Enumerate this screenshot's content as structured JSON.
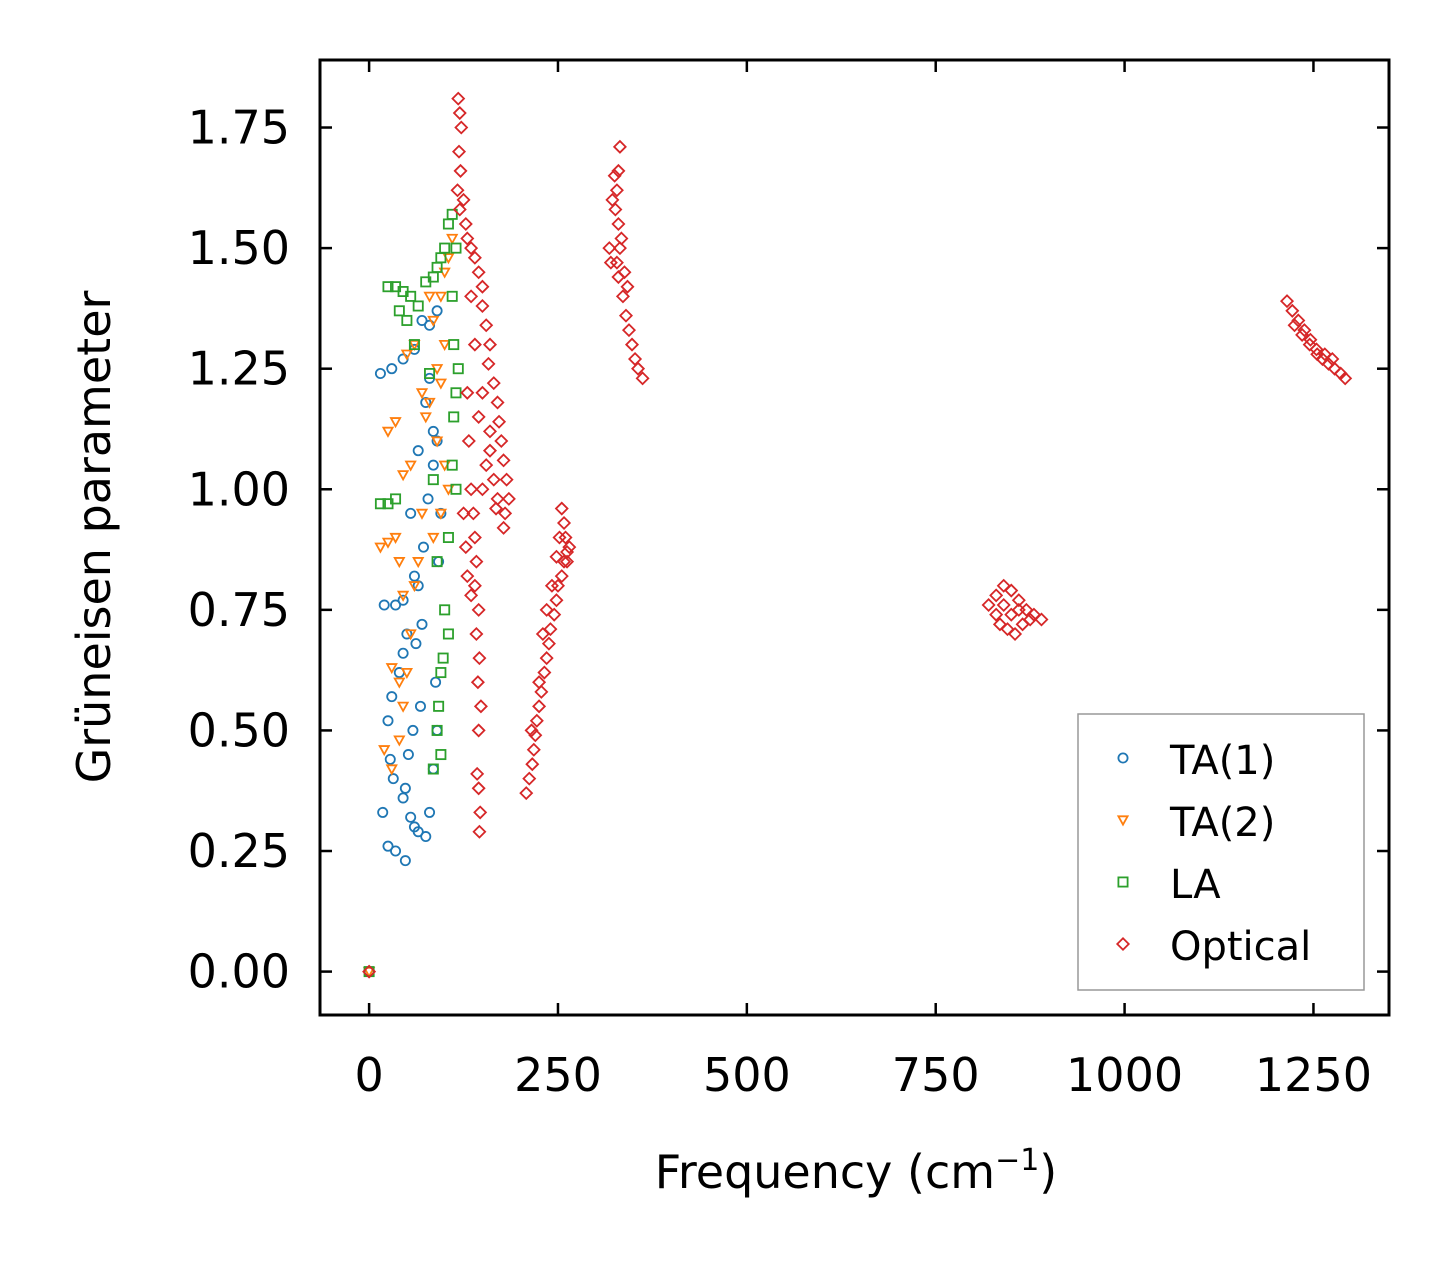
{
  "chart_data": {
    "type": "scatter",
    "xlabel": "Frequency (cm",
    "xlabel_sup": "−1",
    "xlabel_end": ")",
    "ylabel": "Grüneisen parameter",
    "xlim": [
      -65,
      1350
    ],
    "ylim": [
      -0.09,
      1.89
    ],
    "xticks": [
      0,
      250,
      500,
      750,
      1000,
      1250
    ],
    "xtick_labels": [
      "0",
      "250",
      "500",
      "750",
      "1000",
      "1250"
    ],
    "yticks": [
      0.0,
      0.25,
      0.5,
      0.75,
      1.0,
      1.25,
      1.5,
      1.75
    ],
    "ytick_labels": [
      "0.00",
      "0.25",
      "0.50",
      "0.75",
      "1.00",
      "1.25",
      "1.50",
      "1.75"
    ],
    "legend_position": "lower-right",
    "series": [
      {
        "name": "TA(1)",
        "marker": "circle",
        "color": "#1f77b4",
        "points": [
          [
            0,
            0
          ],
          [
            15,
            1.24
          ],
          [
            30,
            1.25
          ],
          [
            45,
            1.27
          ],
          [
            60,
            1.29
          ],
          [
            20,
            0.76
          ],
          [
            35,
            0.76
          ],
          [
            45,
            0.77
          ],
          [
            50,
            0.7
          ],
          [
            40,
            0.62
          ],
          [
            45,
            0.66
          ],
          [
            30,
            0.57
          ],
          [
            25,
            0.52
          ],
          [
            28,
            0.44
          ],
          [
            32,
            0.4
          ],
          [
            18,
            0.33
          ],
          [
            25,
            0.26
          ],
          [
            35,
            0.25
          ],
          [
            48,
            0.23
          ],
          [
            70,
            1.35
          ],
          [
            80,
            1.34
          ],
          [
            90,
            1.37
          ],
          [
            75,
            1.18
          ],
          [
            85,
            1.12
          ],
          [
            65,
            1.08
          ],
          [
            55,
            0.95
          ],
          [
            60,
            0.82
          ],
          [
            65,
            0.8
          ],
          [
            70,
            0.72
          ],
          [
            62,
            0.68
          ],
          [
            68,
            0.55
          ],
          [
            58,
            0.5
          ],
          [
            52,
            0.45
          ],
          [
            48,
            0.38
          ],
          [
            45,
            0.36
          ],
          [
            55,
            0.32
          ],
          [
            60,
            0.3
          ],
          [
            65,
            0.29
          ],
          [
            75,
            0.28
          ],
          [
            80,
            0.33
          ],
          [
            85,
            0.42
          ],
          [
            90,
            0.5
          ],
          [
            88,
            0.6
          ],
          [
            92,
            0.85
          ],
          [
            95,
            0.95
          ],
          [
            85,
            1.05
          ],
          [
            90,
            1.1
          ],
          [
            80,
            1.23
          ],
          [
            78,
            0.98
          ],
          [
            72,
            0.88
          ]
        ]
      },
      {
        "name": "TA(2)",
        "marker": "triangle-down",
        "color": "#ff7f0e",
        "points": [
          [
            0,
            0
          ],
          [
            15,
            0.88
          ],
          [
            25,
            0.89
          ],
          [
            35,
            0.9
          ],
          [
            40,
            0.85
          ],
          [
            45,
            0.78
          ],
          [
            30,
            0.63
          ],
          [
            40,
            0.6
          ],
          [
            20,
            0.46
          ],
          [
            30,
            0.42
          ],
          [
            25,
            1.12
          ],
          [
            35,
            1.14
          ],
          [
            45,
            1.03
          ],
          [
            55,
            1.05
          ],
          [
            50,
            1.28
          ],
          [
            60,
            1.3
          ],
          [
            70,
            1.2
          ],
          [
            80,
            1.18
          ],
          [
            90,
            1.1
          ],
          [
            95,
            1.4
          ],
          [
            100,
            1.45
          ],
          [
            105,
            1.48
          ],
          [
            110,
            1.52
          ],
          [
            100,
            1.3
          ],
          [
            95,
            1.22
          ],
          [
            90,
            1.25
          ],
          [
            85,
            1.35
          ],
          [
            80,
            1.4
          ],
          [
            75,
            1.15
          ],
          [
            70,
            0.95
          ],
          [
            65,
            0.85
          ],
          [
            60,
            0.8
          ],
          [
            55,
            0.7
          ],
          [
            50,
            0.62
          ],
          [
            45,
            0.55
          ],
          [
            40,
            0.48
          ],
          [
            85,
            0.9
          ],
          [
            95,
            0.95
          ],
          [
            100,
            1.05
          ],
          [
            105,
            1.0
          ]
        ]
      },
      {
        "name": "LA",
        "marker": "square",
        "color": "#2ca02c",
        "points": [
          [
            0,
            0
          ],
          [
            25,
            1.42
          ],
          [
            35,
            1.42
          ],
          [
            45,
            1.41
          ],
          [
            55,
            1.4
          ],
          [
            40,
            1.37
          ],
          [
            50,
            1.35
          ],
          [
            60,
            1.3
          ],
          [
            65,
            1.38
          ],
          [
            75,
            1.43
          ],
          [
            85,
            1.44
          ],
          [
            90,
            1.46
          ],
          [
            95,
            1.48
          ],
          [
            100,
            1.5
          ],
          [
            105,
            1.55
          ],
          [
            110,
            1.57
          ],
          [
            115,
            1.5
          ],
          [
            110,
            1.4
          ],
          [
            112,
            1.3
          ],
          [
            115,
            1.2
          ],
          [
            110,
            1.05
          ],
          [
            105,
            0.9
          ],
          [
            100,
            0.75
          ],
          [
            98,
            0.65
          ],
          [
            95,
            0.62
          ],
          [
            92,
            0.55
          ],
          [
            90,
            0.5
          ],
          [
            95,
            0.45
          ],
          [
            85,
            0.42
          ],
          [
            15,
            0.97
          ],
          [
            25,
            0.97
          ],
          [
            35,
            0.98
          ],
          [
            80,
            1.24
          ],
          [
            85,
            1.02
          ],
          [
            90,
            0.85
          ],
          [
            105,
            0.7
          ],
          [
            115,
            1.0
          ],
          [
            112,
            1.15
          ],
          [
            118,
            1.25
          ]
        ]
      },
      {
        "name": "Optical",
        "marker": "diamond",
        "color": "#d62728",
        "points": [
          [
            0,
            0
          ],
          [
            118,
            1.81
          ],
          [
            120,
            1.78
          ],
          [
            122,
            1.75
          ],
          [
            119,
            1.7
          ],
          [
            121,
            1.66
          ],
          [
            117,
            1.62
          ],
          [
            125,
            1.6
          ],
          [
            120,
            1.58
          ],
          [
            128,
            1.55
          ],
          [
            130,
            1.52
          ],
          [
            135,
            1.5
          ],
          [
            140,
            1.48
          ],
          [
            145,
            1.45
          ],
          [
            150,
            1.42
          ],
          [
            150,
            1.38
          ],
          [
            155,
            1.34
          ],
          [
            160,
            1.3
          ],
          [
            158,
            1.26
          ],
          [
            165,
            1.22
          ],
          [
            170,
            1.18
          ],
          [
            172,
            1.14
          ],
          [
            175,
            1.1
          ],
          [
            178,
            1.06
          ],
          [
            182,
            1.02
          ],
          [
            185,
            0.98
          ],
          [
            180,
            0.95
          ],
          [
            178,
            0.92
          ],
          [
            130,
            1.2
          ],
          [
            132,
            1.1
          ],
          [
            135,
            1.0
          ],
          [
            138,
            0.95
          ],
          [
            140,
            0.9
          ],
          [
            142,
            0.85
          ],
          [
            140,
            0.8
          ],
          [
            145,
            0.75
          ],
          [
            142,
            0.7
          ],
          [
            146,
            0.65
          ],
          [
            144,
            0.6
          ],
          [
            148,
            0.55
          ],
          [
            145,
            0.5
          ],
          [
            143,
            0.41
          ],
          [
            145,
            0.38
          ],
          [
            147,
            0.33
          ],
          [
            146,
            0.29
          ],
          [
            125,
            0.95
          ],
          [
            128,
            0.88
          ],
          [
            130,
            0.82
          ],
          [
            135,
            0.78
          ],
          [
            150,
            1.0
          ],
          [
            155,
            1.05
          ],
          [
            160,
            1.12
          ],
          [
            165,
            1.02
          ],
          [
            170,
            0.98
          ],
          [
            150,
            1.2
          ],
          [
            140,
            1.3
          ],
          [
            135,
            1.4
          ],
          [
            145,
            1.15
          ],
          [
            160,
            1.08
          ],
          [
            168,
            0.96
          ],
          [
            332,
            1.71
          ],
          [
            330,
            1.66
          ],
          [
            328,
            1.62
          ],
          [
            326,
            1.58
          ],
          [
            330,
            1.55
          ],
          [
            334,
            1.52
          ],
          [
            332,
            1.5
          ],
          [
            328,
            1.47
          ],
          [
            330,
            1.44
          ],
          [
            336,
            1.4
          ],
          [
            340,
            1.36
          ],
          [
            344,
            1.33
          ],
          [
            348,
            1.3
          ],
          [
            352,
            1.27
          ],
          [
            356,
            1.25
          ],
          [
            362,
            1.23
          ],
          [
            320,
            1.47
          ],
          [
            318,
            1.5
          ],
          [
            322,
            1.6
          ],
          [
            325,
            1.65
          ],
          [
            338,
            1.45
          ],
          [
            342,
            1.42
          ],
          [
            255,
            0.96
          ],
          [
            258,
            0.93
          ],
          [
            260,
            0.9
          ],
          [
            262,
            0.87
          ],
          [
            258,
            0.85
          ],
          [
            255,
            0.82
          ],
          [
            250,
            0.8
          ],
          [
            248,
            0.77
          ],
          [
            245,
            0.74
          ],
          [
            240,
            0.71
          ],
          [
            238,
            0.68
          ],
          [
            235,
            0.65
          ],
          [
            232,
            0.62
          ],
          [
            228,
            0.58
          ],
          [
            225,
            0.55
          ],
          [
            222,
            0.52
          ],
          [
            220,
            0.49
          ],
          [
            218,
            0.46
          ],
          [
            216,
            0.43
          ],
          [
            212,
            0.4
          ],
          [
            208,
            0.37
          ],
          [
            230,
            0.7
          ],
          [
            235,
            0.75
          ],
          [
            242,
            0.8
          ],
          [
            248,
            0.86
          ],
          [
            252,
            0.9
          ],
          [
            265,
            0.88
          ],
          [
            262,
            0.85
          ],
          [
            225,
            0.6
          ],
          [
            215,
            0.5
          ],
          [
            820,
            0.76
          ],
          [
            830,
            0.78
          ],
          [
            840,
            0.8
          ],
          [
            850,
            0.79
          ],
          [
            860,
            0.77
          ],
          [
            870,
            0.75
          ],
          [
            880,
            0.74
          ],
          [
            890,
            0.73
          ],
          [
            835,
            0.72
          ],
          [
            845,
            0.71
          ],
          [
            855,
            0.7
          ],
          [
            865,
            0.72
          ],
          [
            875,
            0.73
          ],
          [
            850,
            0.74
          ],
          [
            860,
            0.75
          ],
          [
            840,
            0.76
          ],
          [
            830,
            0.74
          ],
          [
            1215,
            1.39
          ],
          [
            1222,
            1.37
          ],
          [
            1230,
            1.35
          ],
          [
            1238,
            1.33
          ],
          [
            1246,
            1.31
          ],
          [
            1254,
            1.29
          ],
          [
            1262,
            1.27
          ],
          [
            1270,
            1.26
          ],
          [
            1278,
            1.25
          ],
          [
            1286,
            1.24
          ],
          [
            1292,
            1.23
          ],
          [
            1225,
            1.34
          ],
          [
            1235,
            1.32
          ],
          [
            1245,
            1.3
          ],
          [
            1255,
            1.28
          ],
          [
            1265,
            1.28
          ],
          [
            1275,
            1.27
          ]
        ]
      }
    ]
  }
}
